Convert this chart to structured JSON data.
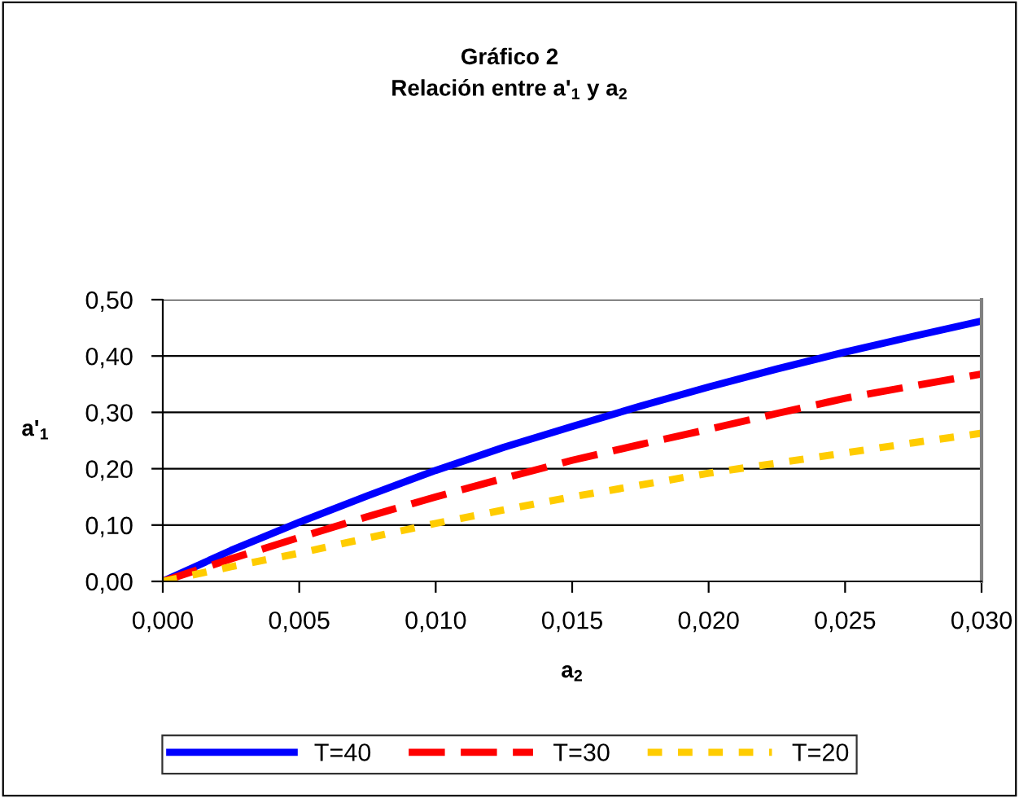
{
  "chart_data": {
    "type": "line",
    "title": "Gráfico 2\nRelación entre a'$_{1}$ y a$_{2}$",
    "xlabel": "a$_{2}$",
    "ylabel": "a'$_{1}$",
    "x": [
      0,
      0.0025,
      0.005,
      0.0075,
      0.01,
      0.0125,
      0.015,
      0.0175,
      0.02,
      0.0225,
      0.025,
      0.0275,
      0.03
    ],
    "series": [
      {
        "name": "T=40",
        "color": "#0000ff",
        "line_style": "solid",
        "values": [
          0,
          0.055,
          0.105,
          0.152,
          0.197,
          0.238,
          0.275,
          0.311,
          0.345,
          0.377,
          0.407,
          0.435,
          0.462
        ]
      },
      {
        "name": "T=30",
        "color": "#ff0000",
        "line_style": "dashed",
        "values": [
          0,
          0.04,
          0.078,
          0.115,
          0.15,
          0.183,
          0.215,
          0.243,
          0.27,
          0.298,
          0.325,
          0.347,
          0.368
        ]
      },
      {
        "name": "T=20",
        "color": "#ffcc00",
        "line_style": "dotted",
        "values": [
          0,
          0.026,
          0.05,
          0.077,
          0.103,
          0.127,
          0.15,
          0.171,
          0.192,
          0.21,
          0.228,
          0.246,
          0.263
        ]
      }
    ],
    "xlim": [
      0,
      0.03
    ],
    "ylim": [
      0,
      0.5
    ],
    "xticks": [
      {
        "value": 0,
        "label": "0,000"
      },
      {
        "value": 0.005,
        "label": "0,005"
      },
      {
        "value": 0.01,
        "label": "0,010"
      },
      {
        "value": 0.015,
        "label": "0,015"
      },
      {
        "value": 0.02,
        "label": "0,020"
      },
      {
        "value": 0.025,
        "label": "0,025"
      },
      {
        "value": 0.03,
        "label": "0,030"
      }
    ],
    "yticks": [
      {
        "value": 0,
        "label": "0,00"
      },
      {
        "value": 0.1,
        "label": "0,10"
      },
      {
        "value": 0.2,
        "label": "0,20"
      },
      {
        "value": 0.3,
        "label": "0,30"
      },
      {
        "value": 0.4,
        "label": "0,40"
      },
      {
        "value": 0.5,
        "label": "0,50"
      }
    ],
    "grid": "y",
    "legend": "bottom",
    "marker": "none"
  }
}
